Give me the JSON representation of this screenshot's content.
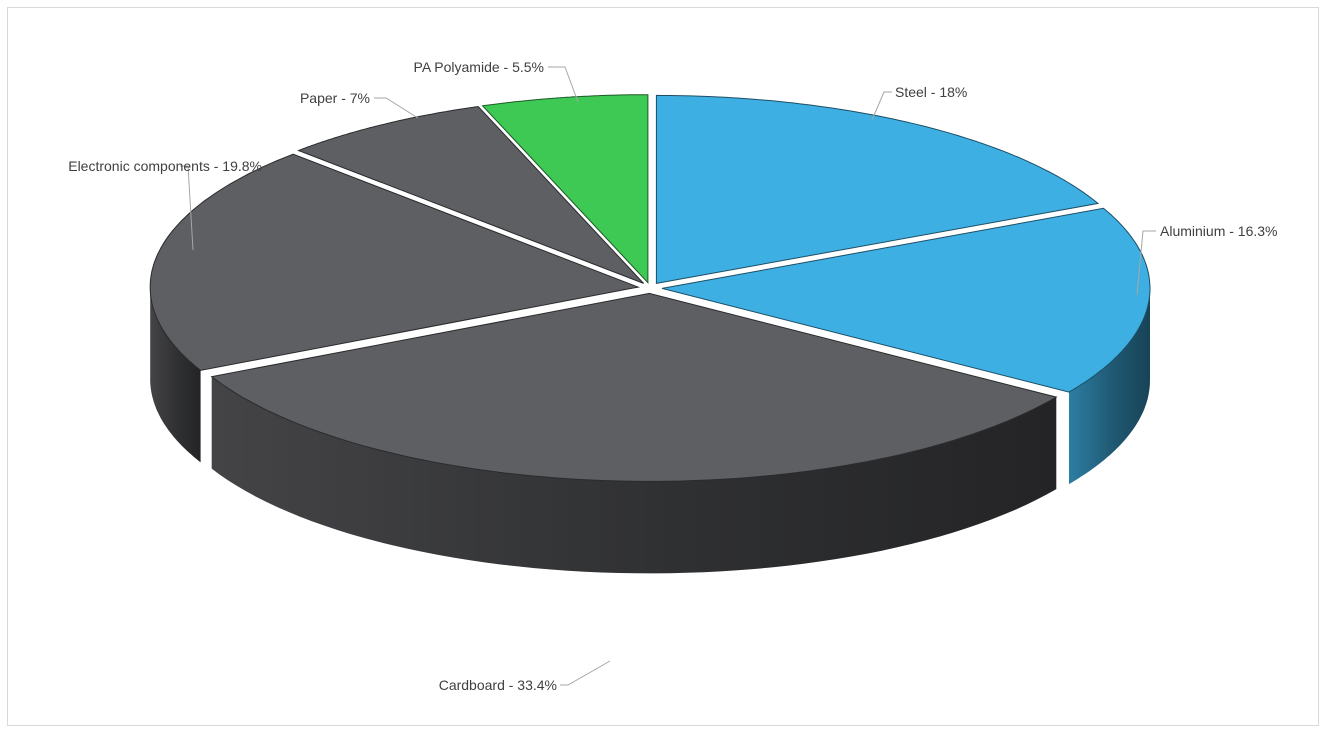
{
  "chart_data": {
    "type": "pie",
    "title": "",
    "slices": [
      {
        "name": "Steel",
        "value": 18,
        "color": "#3eafe3",
        "label": "Steel - 18%"
      },
      {
        "name": "Aluminium",
        "value": 16.3,
        "color": "#3eafe3",
        "label": "Aluminium - 16.3%"
      },
      {
        "name": "Cardboard",
        "value": 33.4,
        "color": "#5e5f63",
        "label": "Cardboard - 33.4%"
      },
      {
        "name": "Electronic components",
        "value": 19.8,
        "color": "#5e5f63",
        "label": "Electronic components - 19.8%"
      },
      {
        "name": "Paper",
        "value": 7,
        "color": "#5e5f63",
        "label": "Paper - 7%"
      },
      {
        "name": "PA Polyamide",
        "value": 5.5,
        "color": "#3ec955",
        "label": "PA Polyamide - 5.5%"
      }
    ],
    "legend": "none",
    "style": "3d-exploded"
  }
}
